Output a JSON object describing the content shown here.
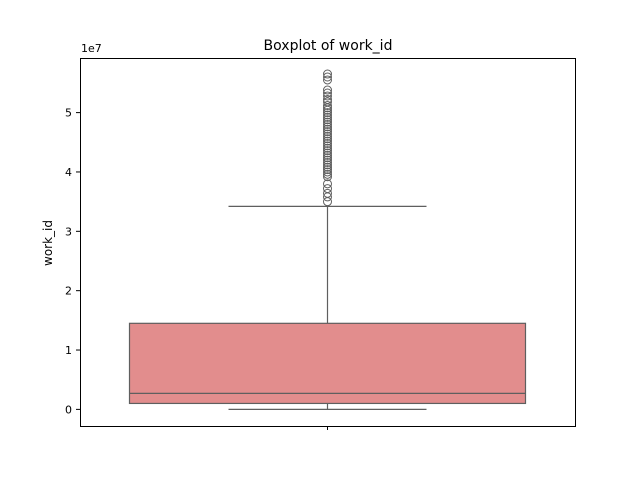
{
  "chart_data": {
    "type": "box",
    "title": "Boxplot of work_id",
    "xlabel": "",
    "ylabel": "work_id",
    "offset_label": "1e7",
    "ylim": [
      -0.28,
      5.92
    ],
    "yticks": [
      0,
      1,
      2,
      3,
      4,
      5
    ],
    "scale_factor": 10000000,
    "grid": false,
    "box_color": "#e28d8d",
    "edge_color": "#5f5f5f",
    "box": {
      "lower_whisker": 0.0,
      "q1": 0.1,
      "median": 0.27,
      "q3": 1.45,
      "upper_whisker": 3.42
    },
    "outliers": [
      3.5,
      3.58,
      3.64,
      3.72,
      3.8,
      3.92,
      3.96,
      4.0,
      4.04,
      4.08,
      4.12,
      4.16,
      4.2,
      4.24,
      4.28,
      4.32,
      4.36,
      4.4,
      4.44,
      4.48,
      4.52,
      4.56,
      4.6,
      4.64,
      4.68,
      4.72,
      4.76,
      4.8,
      4.84,
      4.88,
      4.92,
      4.96,
      5.0,
      5.04,
      5.08,
      5.12,
      5.18,
      5.22,
      5.28,
      5.33,
      5.38,
      5.55,
      5.6,
      5.65
    ]
  }
}
